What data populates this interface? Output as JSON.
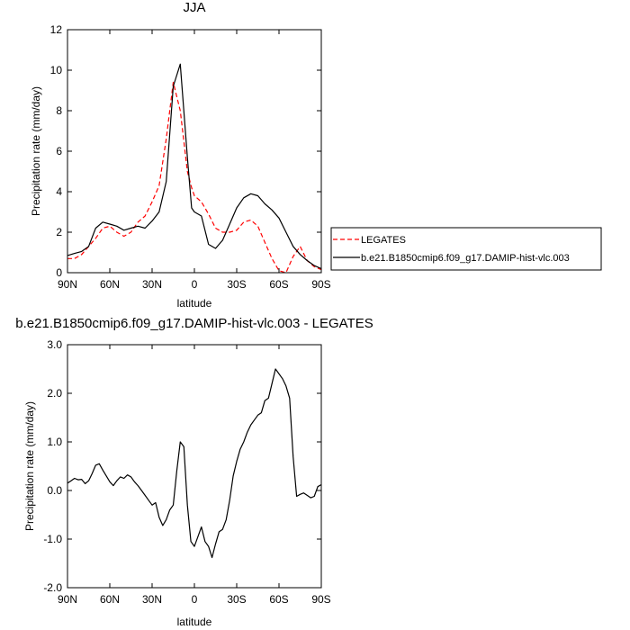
{
  "chart_data": [
    {
      "type": "line",
      "title": "JJA",
      "xlabel": "latitude",
      "ylabel": "Precipitation rate (mm/day)",
      "xlim": [
        90,
        -90
      ],
      "ylim": [
        0,
        12
      ],
      "xticks": [
        90,
        60,
        30,
        0,
        -30,
        -60,
        -90
      ],
      "xtick_labels": [
        "90N",
        "60N",
        "30N",
        "0",
        "30S",
        "60S",
        "90S"
      ],
      "yticks": [
        0,
        2,
        4,
        6,
        8,
        10,
        12
      ],
      "ytick_labels": [
        "0",
        "2",
        "4",
        "6",
        "8",
        "10",
        "12"
      ],
      "legend_position": "right",
      "series": [
        {
          "name": "LEGATES",
          "color": "#ff0000",
          "dash": "dashed",
          "x": [
            90,
            85,
            80,
            75,
            70,
            65,
            60,
            55,
            50,
            45,
            40,
            35,
            30,
            25,
            20,
            15,
            10,
            5,
            2,
            0,
            -5,
            -10,
            -15,
            -20,
            -25,
            -30,
            -35,
            -40,
            -45,
            -50,
            -55,
            -60,
            -65,
            -70,
            -75,
            -80,
            -85,
            -90
          ],
          "y": [
            0.7,
            0.7,
            0.9,
            1.3,
            1.7,
            2.2,
            2.3,
            2.0,
            1.8,
            2.0,
            2.5,
            2.8,
            3.5,
            4.3,
            6.6,
            9.4,
            8.0,
            5.0,
            4.2,
            3.8,
            3.5,
            2.9,
            2.2,
            2.0,
            2.0,
            2.1,
            2.5,
            2.6,
            2.3,
            1.5,
            0.7,
            0.1,
            0.0,
            0.8,
            1.3,
            0.6,
            0.3,
            0.15
          ]
        },
        {
          "name": "b.e21.B1850cmip6.f09_g17.DAMIP-hist-vlc.003",
          "color": "#000000",
          "dash": "solid",
          "x": [
            90,
            85,
            80,
            75,
            70,
            65,
            60,
            55,
            50,
            45,
            40,
            35,
            30,
            25,
            20,
            15,
            10,
            5,
            2,
            0,
            -5,
            -10,
            -15,
            -20,
            -25,
            -30,
            -35,
            -40,
            -45,
            -50,
            -55,
            -60,
            -65,
            -70,
            -75,
            -80,
            -85,
            -90
          ],
          "y": [
            0.85,
            0.95,
            1.05,
            1.3,
            2.2,
            2.5,
            2.4,
            2.3,
            2.1,
            2.2,
            2.3,
            2.2,
            2.55,
            3.0,
            4.5,
            9.2,
            10.3,
            5.7,
            3.2,
            3.0,
            2.8,
            1.4,
            1.2,
            1.6,
            2.4,
            3.2,
            3.7,
            3.9,
            3.8,
            3.4,
            3.1,
            2.7,
            2.0,
            1.3,
            0.9,
            0.6,
            0.35,
            0.2
          ]
        }
      ]
    },
    {
      "type": "line",
      "title": "b.e21.B1850cmip6.f09_g17.DAMIP-hist-vlc.003 - LEGATES",
      "xlabel": "latitude",
      "ylabel": "Precipitation rate (mm/day)",
      "xlim": [
        90,
        -90
      ],
      "ylim": [
        -2,
        3
      ],
      "xticks": [
        90,
        60,
        30,
        0,
        -30,
        -60,
        -90
      ],
      "xtick_labels": [
        "90N",
        "60N",
        "30N",
        "0",
        "30S",
        "60S",
        "90S"
      ],
      "yticks": [
        -2,
        -1,
        0,
        1,
        2,
        3
      ],
      "ytick_labels": [
        "-2.0",
        "-1.0",
        "0.0",
        "1.0",
        "2.0",
        "3.0"
      ],
      "series": [
        {
          "color": "#000000",
          "dash": "solid",
          "x": [
            90,
            87.5,
            85,
            82.5,
            80,
            77.5,
            75,
            72.5,
            70,
            67.5,
            65,
            62.5,
            60,
            57.5,
            55,
            52.5,
            50,
            47.5,
            45,
            42.5,
            40,
            37.5,
            35,
            32.5,
            30,
            27.5,
            25,
            22.5,
            20,
            17.5,
            15,
            12.5,
            10,
            7.5,
            5,
            2.5,
            0,
            -2.5,
            -5,
            -7.5,
            -10,
            -12.5,
            -15,
            -17.5,
            -20,
            -22.5,
            -25,
            -27.5,
            -30,
            -32.5,
            -35,
            -37.5,
            -40,
            -42.5,
            -45,
            -47.5,
            -50,
            -52.5,
            -55,
            -57.5,
            -60,
            -62.5,
            -65,
            -67.5,
            -70,
            -72.5,
            -75,
            -77.5,
            -80,
            -82.5,
            -85,
            -87.5,
            -90
          ],
          "y": [
            0.15,
            0.2,
            0.25,
            0.22,
            0.23,
            0.14,
            0.2,
            0.35,
            0.52,
            0.55,
            0.42,
            0.3,
            0.18,
            0.1,
            0.2,
            0.28,
            0.25,
            0.32,
            0.28,
            0.18,
            0.1,
            0.0,
            -0.1,
            -0.2,
            -0.3,
            -0.25,
            -0.55,
            -0.72,
            -0.6,
            -0.4,
            -0.3,
            0.4,
            1.0,
            0.9,
            -0.3,
            -1.05,
            -1.15,
            -0.95,
            -0.75,
            -1.05,
            -1.15,
            -1.38,
            -1.1,
            -0.85,
            -0.8,
            -0.6,
            -0.2,
            0.3,
            0.6,
            0.85,
            1.0,
            1.2,
            1.35,
            1.45,
            1.55,
            1.6,
            1.85,
            1.9,
            2.2,
            2.5,
            2.4,
            2.3,
            2.15,
            1.9,
            0.7,
            -0.12,
            -0.08,
            -0.05,
            -0.1,
            -0.15,
            -0.12,
            0.08,
            0.12
          ]
        }
      ]
    }
  ]
}
